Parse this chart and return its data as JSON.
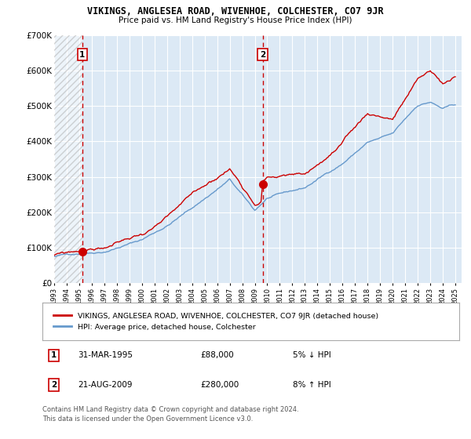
{
  "title": "VIKINGS, ANGLESEA ROAD, WIVENHOE, COLCHESTER, CO7 9JR",
  "subtitle": "Price paid vs. HM Land Registry's House Price Index (HPI)",
  "legend_line1": "VIKINGS, ANGLESEA ROAD, WIVENHOE, COLCHESTER, CO7 9JR (detached house)",
  "legend_line2": "HPI: Average price, detached house, Colchester",
  "transaction1_date": "31-MAR-1995",
  "transaction1_price": "£88,000",
  "transaction1_hpi": "5% ↓ HPI",
  "transaction2_date": "21-AUG-2009",
  "transaction2_price": "£280,000",
  "transaction2_hpi": "8% ↑ HPI",
  "footer": "Contains HM Land Registry data © Crown copyright and database right 2024.\nThis data is licensed under the Open Government Licence v3.0.",
  "plot_bg_color": "#dce9f5",
  "grid_color": "#ffffff",
  "red_line_color": "#cc0000",
  "blue_line_color": "#6699cc",
  "marker_color": "#cc0000",
  "dashed_line_color": "#cc0000",
  "ylim": [
    0,
    700000
  ],
  "yticks": [
    0,
    100000,
    200000,
    300000,
    400000,
    500000,
    600000,
    700000
  ],
  "ytick_labels": [
    "£0",
    "£100K",
    "£200K",
    "£300K",
    "£400K",
    "£500K",
    "£600K",
    "£700K"
  ],
  "transaction1_x": 1995.24,
  "transaction1_y": 88000,
  "transaction2_x": 2009.64,
  "transaction2_y": 280000,
  "hatch_end_x": 1995.24,
  "xmin": 1993.0,
  "xmax": 2025.5
}
